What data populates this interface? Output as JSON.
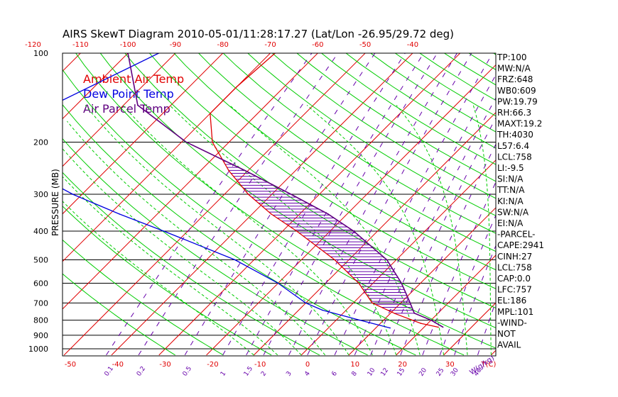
{
  "chart_data": {
    "type": "line",
    "title": "AIRS SkewT Diagram 2010-05-01/11:28:17.27 (Lat/Lon -26.95/29.72 deg)",
    "ylabel": "PRESSURE (MB)",
    "xlabel": "T(C)",
    "mixing_label": "W(g/kg)",
    "pressure_ticks": [
      100,
      200,
      300,
      400,
      500,
      600,
      700,
      800,
      900,
      1000
    ],
    "bottom_temp_ticks": [
      -50,
      -40,
      -30,
      -20,
      -10,
      0,
      10,
      20,
      30
    ],
    "top_temp_ticks": [
      -120,
      -110,
      -100,
      -90,
      -80,
      -70,
      -60,
      -50,
      -40
    ],
    "mixing_ratio_labels": [
      "0.1",
      "0.2",
      "0.5",
      "1",
      "1.5",
      "2",
      "3",
      "4",
      "6",
      "8",
      "10",
      "12",
      "15",
      "20",
      "25",
      "30",
      "40"
    ],
    "legend": [
      {
        "label": "Ambient Air Temp",
        "color": "#e00000"
      },
      {
        "label": "Dew Point Temp",
        "color": "#0000e0"
      },
      {
        "label": "Air Parcel Temp",
        "color": "#600080"
      }
    ],
    "grid": true,
    "colors": {
      "isotherm": "#e00000",
      "dry_adiabat": "#00cc00",
      "moist_adiabat": "#00cc00",
      "mixing_ratio": "#6600aa",
      "isobar": "#000000",
      "text": "#000000",
      "temp_tick": "#e00000",
      "mixing_tick": "#6600aa"
    },
    "series": [
      {
        "name": "Ambient Air Temp",
        "color": "#e00000",
        "points": [
          [
            100,
            -69
          ],
          [
            130,
            -70
          ],
          [
            160,
            -70
          ],
          [
            200,
            -63.5
          ],
          [
            250,
            -54
          ],
          [
            300,
            -45
          ],
          [
            350,
            -36
          ],
          [
            400,
            -27
          ],
          [
            500,
            -13
          ],
          [
            600,
            -3
          ],
          [
            700,
            4
          ],
          [
            760,
            11
          ],
          [
            820,
            18.5
          ],
          [
            845,
            23
          ]
        ]
      },
      {
        "name": "Dew Point Temp",
        "color": "#0000e0",
        "points": [
          [
            100,
            -93.5
          ],
          [
            150,
            -105
          ],
          [
            200,
            -108
          ],
          [
            250,
            -96
          ],
          [
            300,
            -82
          ],
          [
            350,
            -68
          ],
          [
            400,
            -55
          ],
          [
            500,
            -34
          ],
          [
            600,
            -20
          ],
          [
            700,
            -10
          ],
          [
            740,
            -5
          ],
          [
            800,
            5
          ],
          [
            850,
            13
          ]
        ]
      },
      {
        "name": "Air Parcel Temp",
        "color": "#600080",
        "points": [
          [
            100,
            -100
          ],
          [
            150,
            -87
          ],
          [
            200,
            -69
          ],
          [
            250,
            -50.5
          ],
          [
            300,
            -36
          ],
          [
            350,
            -24
          ],
          [
            400,
            -15
          ],
          [
            500,
            -2
          ],
          [
            600,
            6
          ],
          [
            700,
            12
          ],
          [
            758,
            15
          ],
          [
            800,
            20
          ],
          [
            845,
            24
          ]
        ]
      }
    ],
    "indices": [
      "TP:100",
      "MW:N/A",
      "FRZ:648",
      "WB0:609",
      "PW:19.79",
      "RH:66.3",
      "MAXT:19.2",
      "TH:4030",
      "L57:6.4",
      "LCL:758",
      "LI:-9.5",
      "SI:N/A",
      "TT:N/A",
      "KI:N/A",
      "SW:N/A",
      "EI:N/A",
      "-PARCEL-",
      "CAPE:2941",
      "CINH:27",
      "LCL:758",
      "CAP:0.0",
      "LFC:757",
      "EL:186",
      "MPL:101",
      "-WIND-",
      "NOT",
      "AVAIL"
    ]
  }
}
